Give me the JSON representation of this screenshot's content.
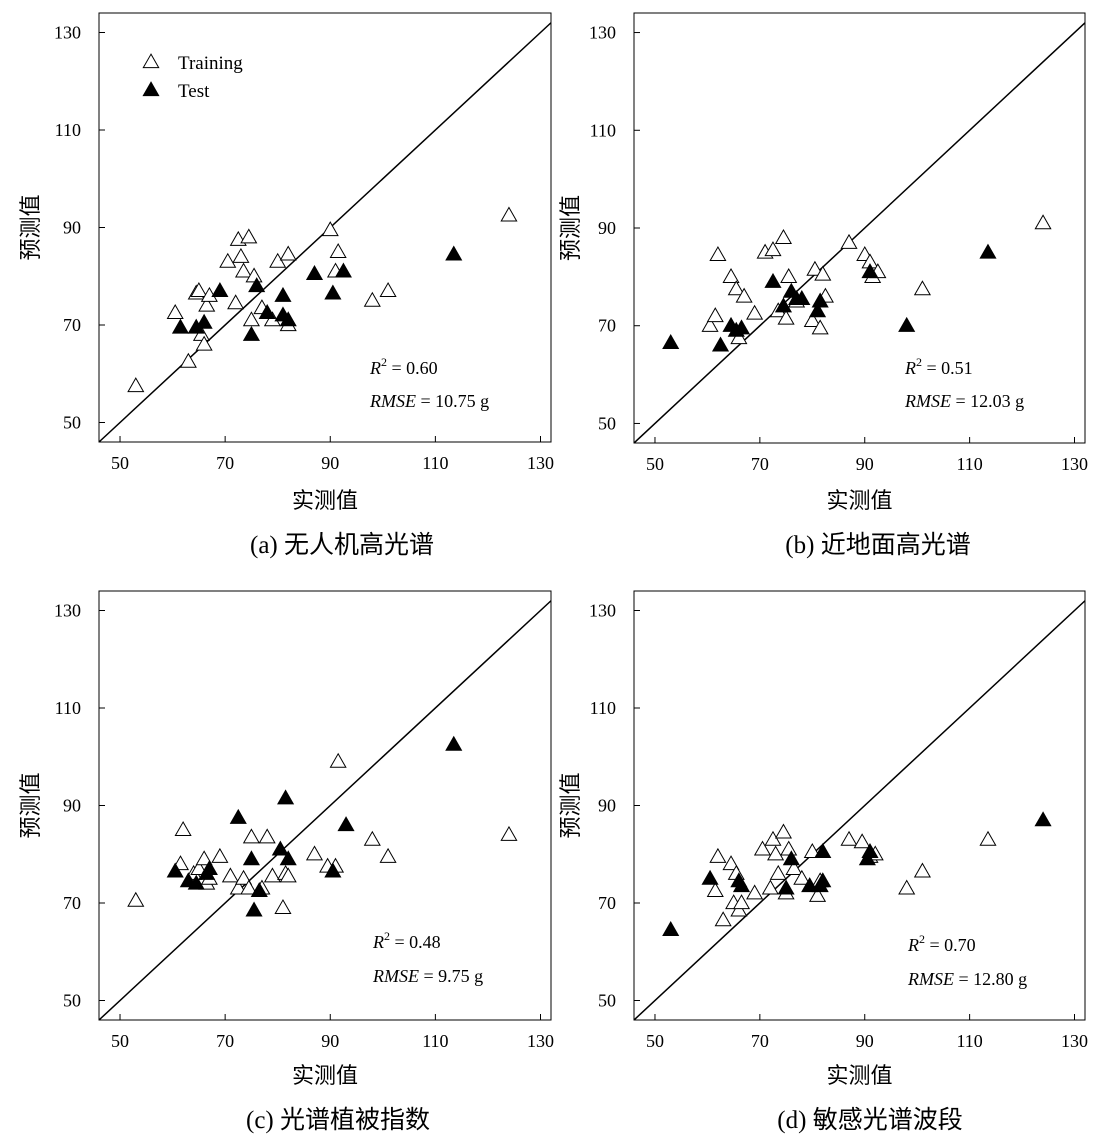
{
  "chart_data": [
    {
      "type": "scatter",
      "caption": "(a) 无人机高光谱",
      "xlabel": "实测值",
      "ylabel": "预测值",
      "xlim": [
        46,
        132
      ],
      "ylim": [
        46,
        134
      ],
      "xticks": [
        50,
        70,
        90,
        110,
        130
      ],
      "yticks": [
        50,
        70,
        90,
        110,
        130
      ],
      "legend": {
        "placement": "top-left",
        "entries": [
          "Training",
          "Test"
        ]
      },
      "reference_line": "1:1",
      "stats": {
        "r2_label": "R",
        "r2_sup": "2",
        "r2_value": "= 0.60",
        "rmse_label": "RMSE",
        "rmse_value": " = 10.75 g"
      },
      "series": [
        {
          "name": "Training",
          "marker": "open-triangle",
          "points": [
            [
              53,
              57.5
            ],
            [
              60.5,
              72.5
            ],
            [
              63,
              62.5
            ],
            [
              64.5,
              76.5
            ],
            [
              65,
              77
            ],
            [
              65.5,
              68
            ],
            [
              66,
              66
            ],
            [
              66.5,
              74
            ],
            [
              67,
              76
            ],
            [
              70.5,
              83
            ],
            [
              72,
              74.5
            ],
            [
              72.5,
              87.5
            ],
            [
              73,
              84
            ],
            [
              73.5,
              81
            ],
            [
              74.5,
              88
            ],
            [
              75,
              71
            ],
            [
              75.5,
              80
            ],
            [
              77,
              73.5
            ],
            [
              79,
              71
            ],
            [
              80,
              83
            ],
            [
              82,
              84.5
            ],
            [
              82,
              70
            ],
            [
              90,
              89.5
            ],
            [
              91,
              81
            ],
            [
              91.5,
              85
            ],
            [
              98,
              75
            ],
            [
              101,
              77
            ],
            [
              124,
              92.5
            ]
          ]
        },
        {
          "name": "Test",
          "marker": "filled-triangle",
          "points": [
            [
              61.5,
              69.5
            ],
            [
              64.5,
              69.5
            ],
            [
              66,
              70.5
            ],
            [
              69,
              77
            ],
            [
              75,
              68
            ],
            [
              76,
              78
            ],
            [
              78,
              72.5
            ],
            [
              81,
              76
            ],
            [
              81,
              72
            ],
            [
              82,
              71
            ],
            [
              87,
              80.5
            ],
            [
              90.5,
              76.5
            ],
            [
              92.5,
              81
            ],
            [
              113.5,
              84.5
            ]
          ]
        }
      ]
    },
    {
      "type": "scatter",
      "caption": "(b) 近地面高光谱",
      "xlabel": "实测值",
      "ylabel": "预测值",
      "xlim": [
        46,
        132
      ],
      "ylim": [
        46,
        134
      ],
      "xticks": [
        50,
        70,
        90,
        110,
        130
      ],
      "yticks": [
        50,
        70,
        90,
        110,
        130
      ],
      "reference_line": "1:1",
      "stats": {
        "r2_label": "R",
        "r2_sup": "2",
        "r2_value": "= 0.51",
        "rmse_label": "RMSE",
        "rmse_value": " = 12.03 g"
      },
      "series": [
        {
          "name": "Training",
          "marker": "open-triangle",
          "points": [
            [
              60.5,
              70
            ],
            [
              61.5,
              72
            ],
            [
              62,
              84.5
            ],
            [
              64.5,
              80
            ],
            [
              65.5,
              77.5
            ],
            [
              66,
              67.5
            ],
            [
              67,
              76
            ],
            [
              69,
              72.5
            ],
            [
              71,
              85
            ],
            [
              72.5,
              85.5
            ],
            [
              73.5,
              73
            ],
            [
              74.5,
              88
            ],
            [
              75,
              71.5
            ],
            [
              75.5,
              80
            ],
            [
              77,
              75
            ],
            [
              80,
              71
            ],
            [
              80.5,
              81.5
            ],
            [
              81.5,
              69.5
            ],
            [
              82,
              80.5
            ],
            [
              82.5,
              76
            ],
            [
              87,
              87
            ],
            [
              90,
              84.5
            ],
            [
              91,
              83
            ],
            [
              91.5,
              80
            ],
            [
              92.5,
              81
            ],
            [
              101,
              77.5
            ],
            [
              124,
              91
            ]
          ]
        },
        {
          "name": "Test",
          "marker": "filled-triangle",
          "points": [
            [
              53,
              66.5
            ],
            [
              62.5,
              66
            ],
            [
              64.5,
              70
            ],
            [
              65.5,
              69
            ],
            [
              66.5,
              69.5
            ],
            [
              72.5,
              79
            ],
            [
              74.5,
              74
            ],
            [
              76,
              77
            ],
            [
              77,
              75.5
            ],
            [
              78,
              75.5
            ],
            [
              81,
              73
            ],
            [
              81.5,
              75
            ],
            [
              91,
              81
            ],
            [
              98,
              70
            ],
            [
              113.5,
              85
            ]
          ]
        }
      ]
    },
    {
      "type": "scatter",
      "caption": "(c) 光谱植被指数",
      "xlabel": "实测值",
      "ylabel": "预测值",
      "xlim": [
        46,
        132
      ],
      "ylim": [
        46,
        134
      ],
      "xticks": [
        50,
        70,
        90,
        110,
        130
      ],
      "yticks": [
        50,
        70,
        90,
        110,
        130
      ],
      "reference_line": "1:1",
      "stats": {
        "r2_label": "R",
        "r2_sup": "2",
        "r2_value": "= 0.48",
        "rmse_label": "RMSE",
        "rmse_value": " = 9.75 g"
      },
      "series": [
        {
          "name": "Training",
          "marker": "open-triangle",
          "points": [
            [
              53,
              70.5
            ],
            [
              61.5,
              78
            ],
            [
              62,
              85
            ],
            [
              64,
              76
            ],
            [
              65,
              77
            ],
            [
              66,
              79
            ],
            [
              66.5,
              74
            ],
            [
              67,
              75
            ],
            [
              69,
              79.5
            ],
            [
              71,
              75.5
            ],
            [
              72.5,
              73
            ],
            [
              73.5,
              75
            ],
            [
              74.5,
              73
            ],
            [
              75,
              83.5
            ],
            [
              77,
              73
            ],
            [
              78,
              83.5
            ],
            [
              79,
              75.5
            ],
            [
              81,
              69
            ],
            [
              81.5,
              76
            ],
            [
              82,
              75.5
            ],
            [
              87,
              80
            ],
            [
              89.5,
              77.5
            ],
            [
              91,
              77.5
            ],
            [
              91.5,
              99
            ],
            [
              98,
              83
            ],
            [
              101,
              79.5
            ],
            [
              124,
              84
            ]
          ]
        },
        {
          "name": "Test",
          "marker": "filled-triangle",
          "points": [
            [
              60.5,
              76.5
            ],
            [
              63,
              74.5
            ],
            [
              64.5,
              74
            ],
            [
              66.5,
              76
            ],
            [
              67,
              77
            ],
            [
              72.5,
              87.5
            ],
            [
              75,
              79
            ],
            [
              75.5,
              68.5
            ],
            [
              76.5,
              72.5
            ],
            [
              80.5,
              81
            ],
            [
              81.5,
              91.5
            ],
            [
              82,
              79
            ],
            [
              90.5,
              76.5
            ],
            [
              93,
              86
            ],
            [
              113.5,
              102.5
            ]
          ]
        }
      ]
    },
    {
      "type": "scatter",
      "caption": "(d) 敏感光谱波段",
      "xlabel": "实测值",
      "ylabel": "预测值",
      "xlim": [
        46,
        132
      ],
      "ylim": [
        46,
        134
      ],
      "xticks": [
        50,
        70,
        90,
        110,
        130
      ],
      "yticks": [
        50,
        70,
        90,
        110,
        130
      ],
      "reference_line": "1:1",
      "stats": {
        "r2_label": "R",
        "r2_sup": "2",
        "r2_value": "= 0.70",
        "rmse_label": "RMSE",
        "rmse_value": " = 12.80 g"
      },
      "series": [
        {
          "name": "Training",
          "marker": "open-triangle",
          "points": [
            [
              61.5,
              72.5
            ],
            [
              62,
              79.5
            ],
            [
              63,
              66.5
            ],
            [
              64.5,
              78
            ],
            [
              65,
              70
            ],
            [
              65.5,
              76
            ],
            [
              66,
              68.5
            ],
            [
              66.5,
              70
            ],
            [
              69,
              72
            ],
            [
              70.5,
              81
            ],
            [
              72,
              73
            ],
            [
              72.5,
              83
            ],
            [
              73,
              80
            ],
            [
              73.5,
              76
            ],
            [
              74.5,
              84.5
            ],
            [
              75,
              72
            ],
            [
              75.5,
              81
            ],
            [
              76.5,
              77
            ],
            [
              78,
              75
            ],
            [
              80,
              80.5
            ],
            [
              81,
              71.5
            ],
            [
              81.5,
              74.5
            ],
            [
              87,
              83
            ],
            [
              89.5,
              82.5
            ],
            [
              91,
              79.5
            ],
            [
              92,
              80
            ],
            [
              98,
              73
            ],
            [
              101,
              76.5
            ],
            [
              113.5,
              83
            ]
          ]
        },
        {
          "name": "Test",
          "marker": "filled-triangle",
          "points": [
            [
              53,
              64.5
            ],
            [
              60.5,
              75
            ],
            [
              66,
              74.5
            ],
            [
              66.5,
              73.5
            ],
            [
              75,
              73
            ],
            [
              76,
              79
            ],
            [
              79.5,
              73.5
            ],
            [
              81.5,
              73.5
            ],
            [
              82,
              74.5
            ],
            [
              82,
              80.5
            ],
            [
              90.5,
              79
            ],
            [
              91,
              80.5
            ],
            [
              124,
              87
            ]
          ]
        }
      ]
    }
  ]
}
